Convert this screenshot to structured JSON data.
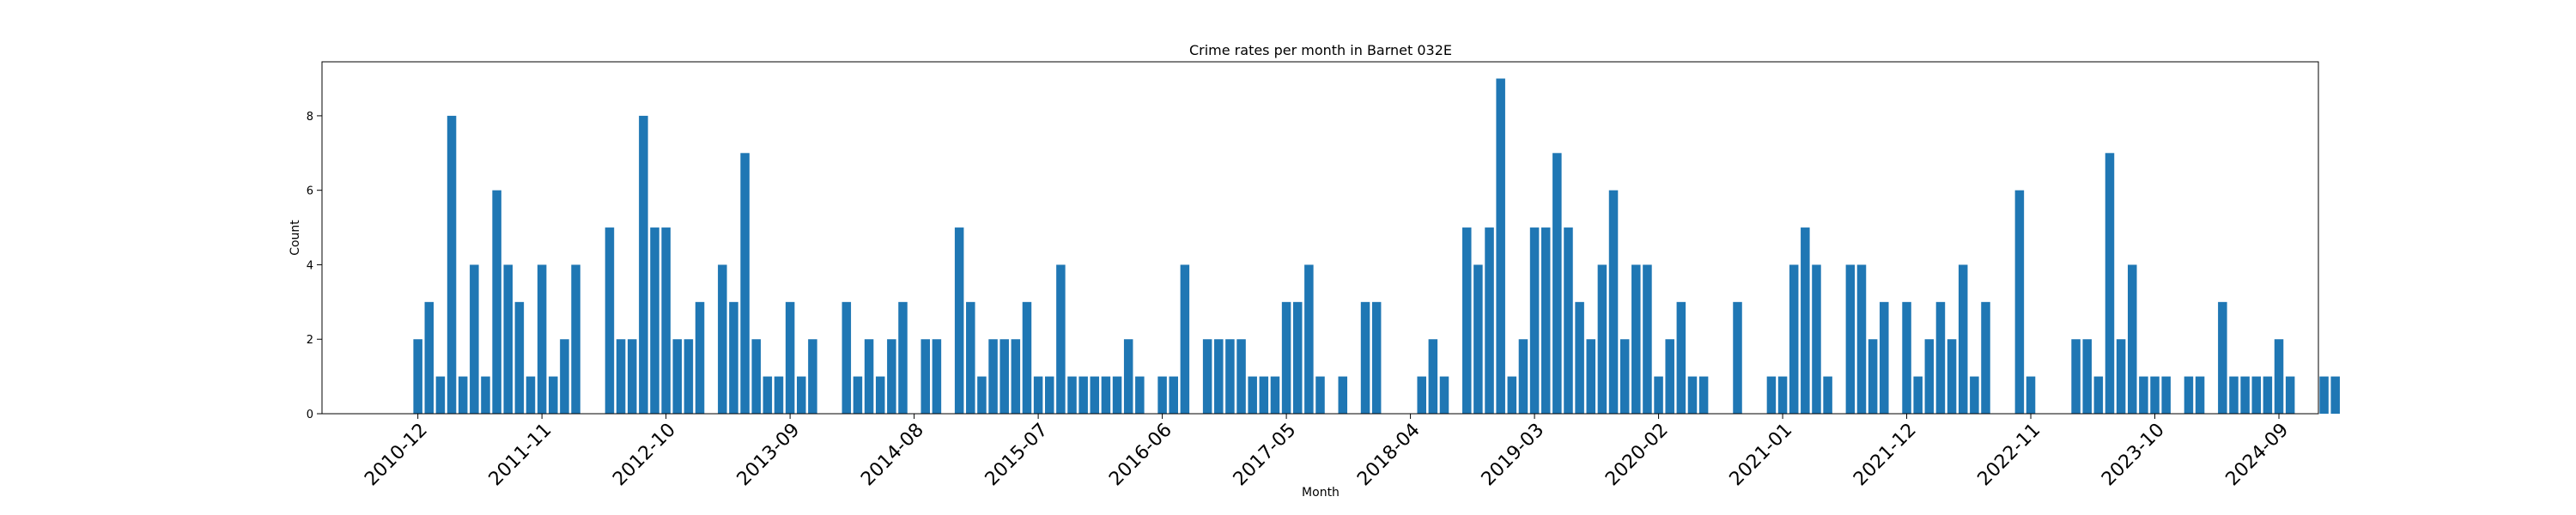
{
  "chart_data": {
    "type": "bar",
    "title": "Crime rates per month in Barnet 032E",
    "xlabel": "Month",
    "ylabel": "Count",
    "ylim": [
      0,
      9.45
    ],
    "yticks": [
      0,
      2,
      4,
      6,
      8
    ],
    "xlim": [
      -8.5,
      168.5
    ],
    "xtick_labels": [
      "2010-12",
      "2011-11",
      "2012-10",
      "2013-09",
      "2014-08",
      "2015-07",
      "2016-06",
      "2017-05",
      "2018-04",
      "2019-03",
      "2020-02",
      "2021-01",
      "2021-12",
      "2022-11",
      "2023-10",
      "2024-09"
    ],
    "xtick_positions": [
      0,
      11,
      22,
      33,
      44,
      55,
      66,
      77,
      88,
      99,
      110,
      121,
      132,
      143,
      154,
      165
    ],
    "color": "#1f77b4",
    "bars": [
      [
        0,
        2
      ],
      [
        1,
        3
      ],
      [
        2,
        1
      ],
      [
        3,
        8
      ],
      [
        4,
        1
      ],
      [
        5,
        4
      ],
      [
        6,
        1
      ],
      [
        7,
        6
      ],
      [
        8,
        4
      ],
      [
        9,
        3
      ],
      [
        10,
        1
      ],
      [
        11,
        4
      ],
      [
        12,
        1
      ],
      [
        13,
        2
      ],
      [
        14,
        4
      ],
      [
        17,
        5
      ],
      [
        18,
        2
      ],
      [
        19,
        2
      ],
      [
        20,
        8
      ],
      [
        21,
        5
      ],
      [
        22,
        5
      ],
      [
        23,
        2
      ],
      [
        24,
        2
      ],
      [
        25,
        3
      ],
      [
        27,
        4
      ],
      [
        28,
        3
      ],
      [
        29,
        7
      ],
      [
        30,
        2
      ],
      [
        31,
        1
      ],
      [
        32,
        1
      ],
      [
        33,
        3
      ],
      [
        34,
        1
      ],
      [
        35,
        2
      ],
      [
        38,
        3
      ],
      [
        39,
        1
      ],
      [
        40,
        2
      ],
      [
        41,
        1
      ],
      [
        42,
        2
      ],
      [
        43,
        3
      ],
      [
        45,
        2
      ],
      [
        46,
        2
      ],
      [
        48,
        5
      ],
      [
        49,
        3
      ],
      [
        50,
        1
      ],
      [
        51,
        2
      ],
      [
        52,
        2
      ],
      [
        53,
        2
      ],
      [
        54,
        3
      ],
      [
        55,
        1
      ],
      [
        56,
        1
      ],
      [
        57,
        4
      ],
      [
        58,
        1
      ],
      [
        59,
        1
      ],
      [
        60,
        1
      ],
      [
        61,
        1
      ],
      [
        62,
        1
      ],
      [
        63,
        2
      ],
      [
        64,
        1
      ],
      [
        66,
        1
      ],
      [
        67,
        1
      ],
      [
        68,
        4
      ],
      [
        70,
        2
      ],
      [
        71,
        2
      ],
      [
        72,
        2
      ],
      [
        73,
        2
      ],
      [
        74,
        1
      ],
      [
        75,
        1
      ],
      [
        76,
        1
      ],
      [
        77,
        3
      ],
      [
        78,
        3
      ],
      [
        79,
        4
      ],
      [
        80,
        1
      ],
      [
        82,
        1
      ],
      [
        84,
        3
      ],
      [
        85,
        3
      ],
      [
        89,
        1
      ],
      [
        90,
        2
      ],
      [
        91,
        1
      ],
      [
        93,
        5
      ],
      [
        94,
        4
      ],
      [
        95,
        5
      ],
      [
        96,
        9
      ],
      [
        97,
        1
      ],
      [
        98,
        2
      ],
      [
        99,
        5
      ],
      [
        100,
        5
      ],
      [
        101,
        7
      ],
      [
        102,
        5
      ],
      [
        103,
        3
      ],
      [
        104,
        2
      ],
      [
        105,
        4
      ],
      [
        106,
        6
      ],
      [
        107,
        2
      ],
      [
        108,
        4
      ],
      [
        109,
        4
      ],
      [
        110,
        1
      ],
      [
        111,
        2
      ],
      [
        112,
        3
      ],
      [
        113,
        1
      ],
      [
        114,
        1
      ],
      [
        117,
        3
      ],
      [
        120,
        1
      ],
      [
        121,
        1
      ],
      [
        122,
        4
      ],
      [
        123,
        5
      ],
      [
        124,
        4
      ],
      [
        125,
        1
      ],
      [
        127,
        4
      ],
      [
        128,
        4
      ],
      [
        129,
        2
      ],
      [
        130,
        3
      ],
      [
        132,
        3
      ],
      [
        133,
        1
      ],
      [
        134,
        2
      ],
      [
        135,
        3
      ],
      [
        136,
        2
      ],
      [
        137,
        4
      ],
      [
        138,
        1
      ],
      [
        139,
        3
      ],
      [
        142,
        6
      ],
      [
        143,
        1
      ],
      [
        147,
        2
      ],
      [
        148,
        2
      ],
      [
        149,
        1
      ],
      [
        150,
        7
      ],
      [
        151,
        2
      ],
      [
        152,
        4
      ],
      [
        153,
        1
      ],
      [
        154,
        1
      ],
      [
        155,
        1
      ],
      [
        157,
        1
      ],
      [
        158,
        1
      ],
      [
        160,
        3
      ],
      [
        161,
        1
      ],
      [
        162,
        1
      ],
      [
        163,
        1
      ],
      [
        164,
        1
      ],
      [
        165,
        2
      ],
      [
        166,
        1
      ],
      [
        169,
        1
      ],
      [
        170,
        1
      ]
    ]
  }
}
